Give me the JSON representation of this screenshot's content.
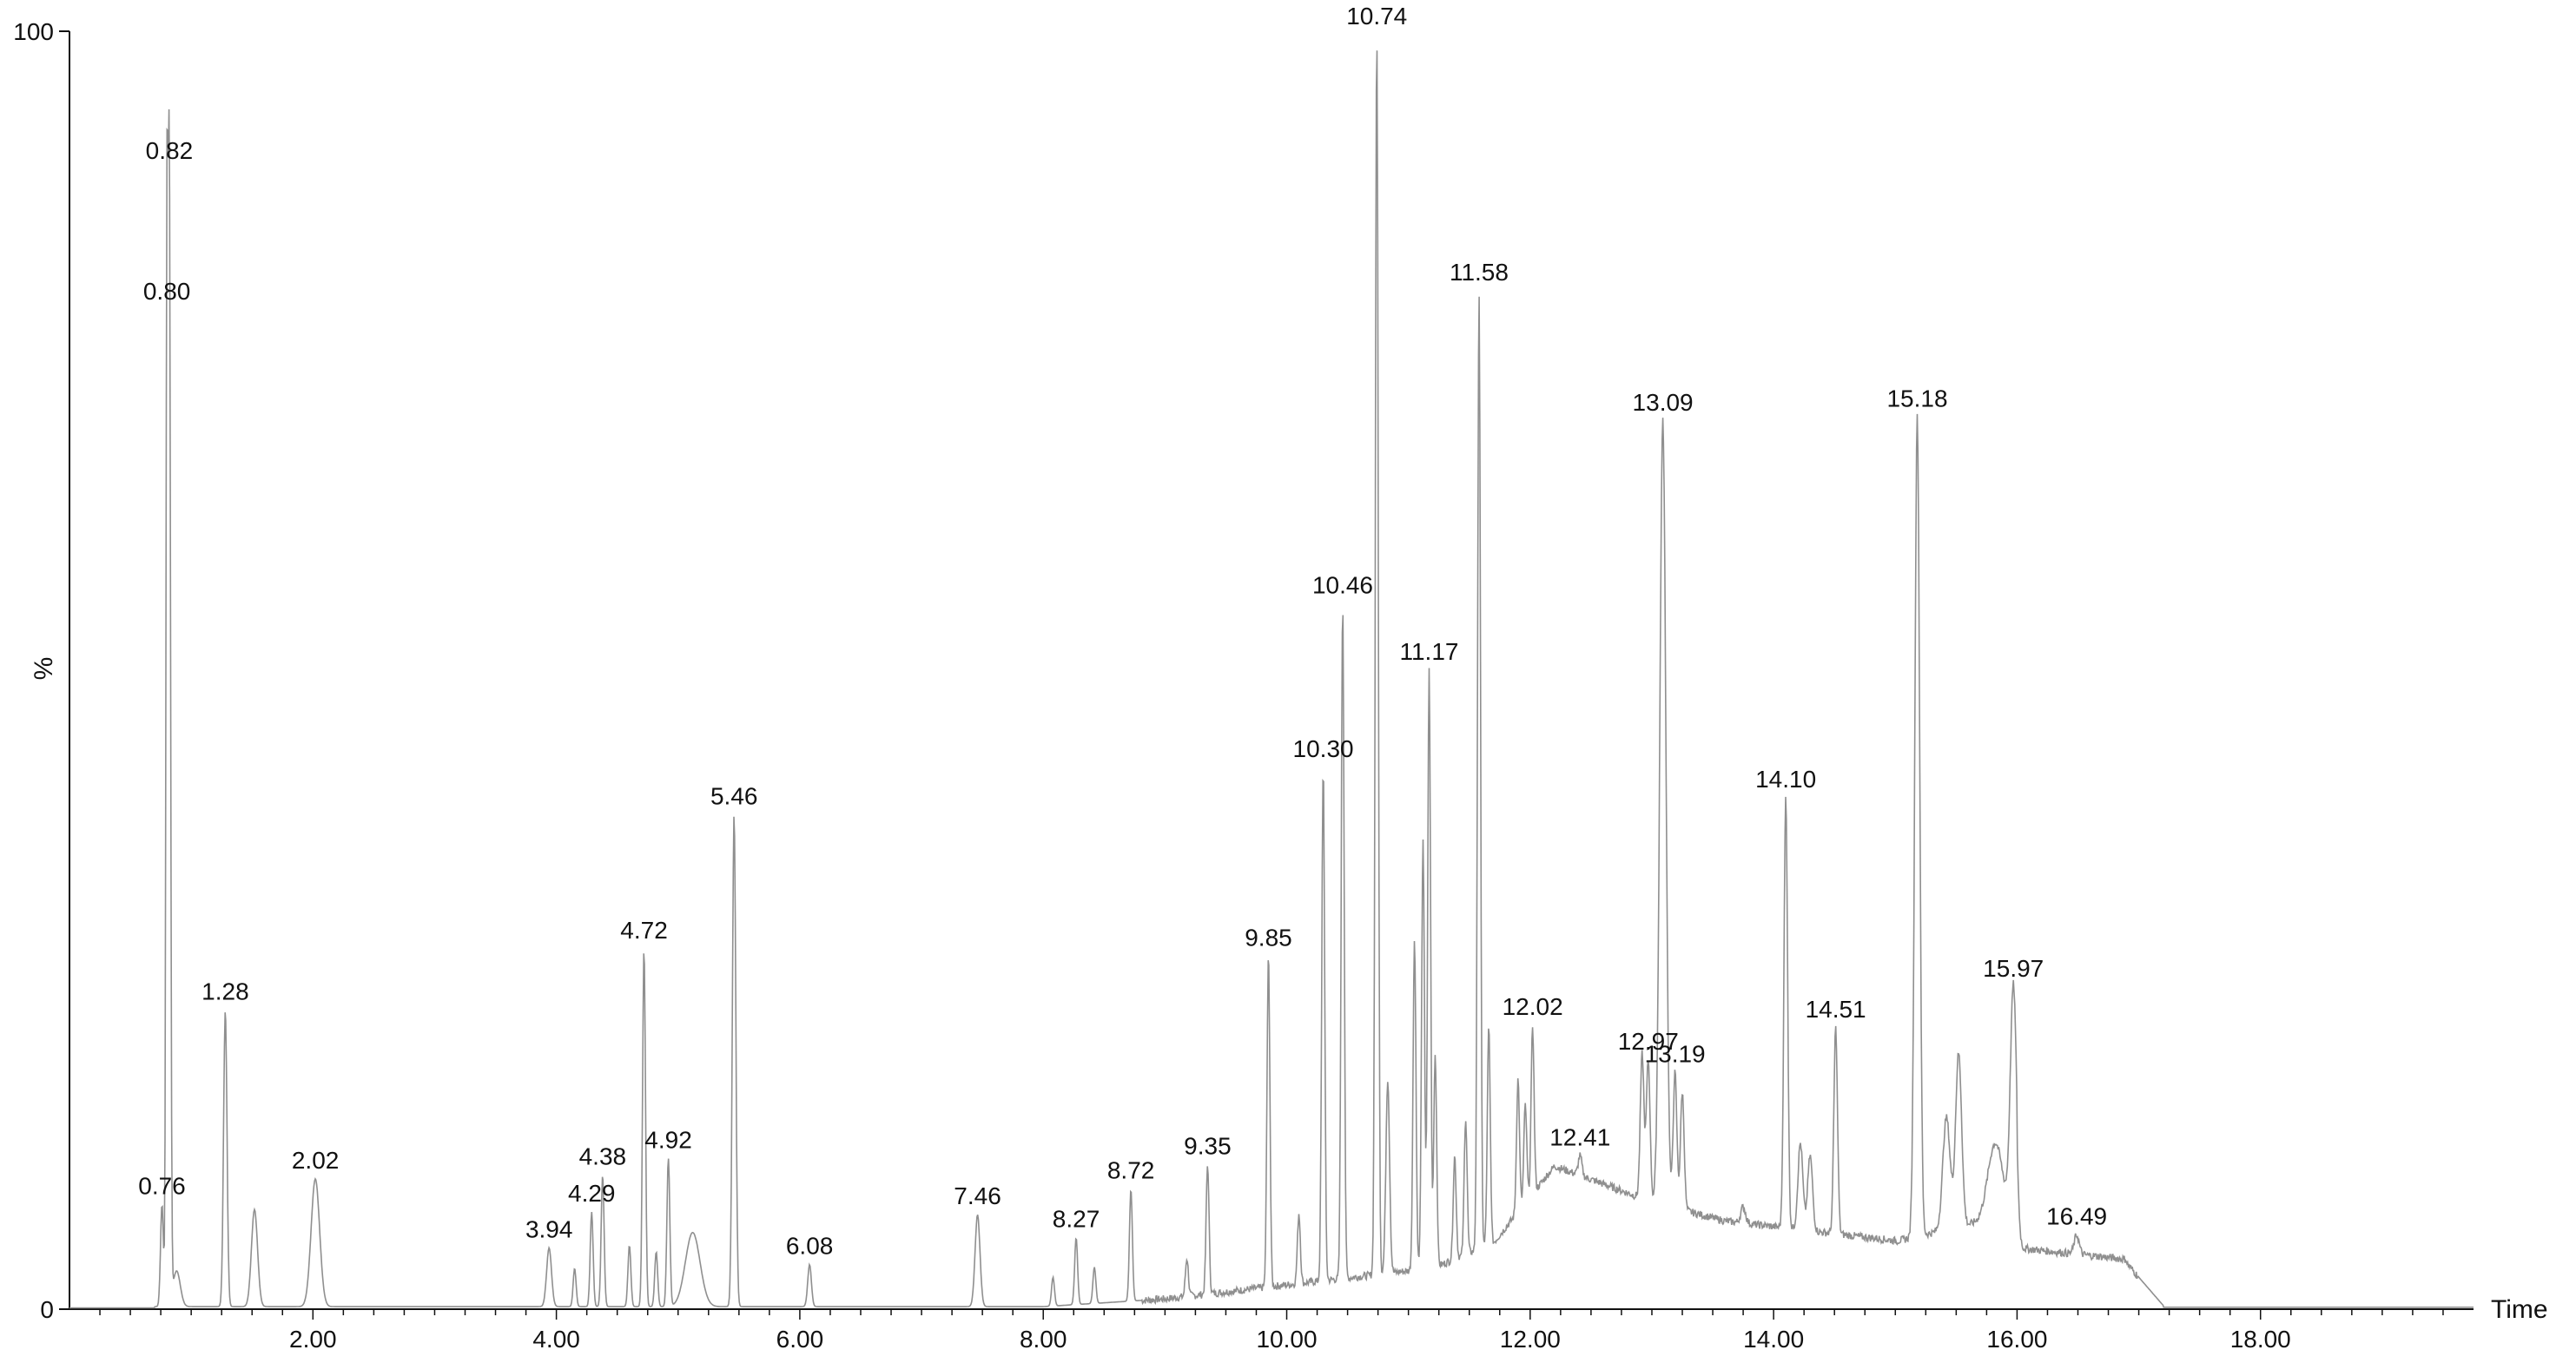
{
  "chart_data": {
    "type": "line",
    "title": "",
    "xlabel": "Time",
    "ylabel": "%",
    "xlim": [
      0.0,
      19.75
    ],
    "ylim": [
      0,
      100
    ],
    "grid": false,
    "x_ticks": [
      "2.00",
      "4.00",
      "6.00",
      "8.00",
      "10.00",
      "12.00",
      "14.00",
      "16.00",
      "18.00"
    ],
    "y_ticks": [
      "0",
      "100"
    ],
    "line_color": "#8f8f8f",
    "peaks": [
      {
        "x": 0.76,
        "y": 8.2,
        "w": 0.012,
        "label": "0.76"
      },
      {
        "x": 0.8,
        "y": 78.2,
        "w": 0.008,
        "label": "0.80"
      },
      {
        "x": 0.82,
        "y": 89.2,
        "w": 0.01,
        "label": "0.82"
      },
      {
        "x": 0.88,
        "y": 3.0,
        "w": 0.03,
        "label": ""
      },
      {
        "x": 1.28,
        "y": 23.4,
        "w": 0.014,
        "label": "1.28"
      },
      {
        "x": 1.52,
        "y": 7.8,
        "w": 0.025,
        "label": ""
      },
      {
        "x": 2.02,
        "y": 10.2,
        "w": 0.035,
        "label": "2.02"
      },
      {
        "x": 3.94,
        "y": 4.8,
        "w": 0.02,
        "label": "3.94"
      },
      {
        "x": 4.15,
        "y": 3.2,
        "w": 0.012,
        "label": ""
      },
      {
        "x": 4.29,
        "y": 7.6,
        "w": 0.012,
        "label": "4.29"
      },
      {
        "x": 4.38,
        "y": 10.5,
        "w": 0.012,
        "label": "4.38"
      },
      {
        "x": 4.6,
        "y": 5.0,
        "w": 0.012,
        "label": ""
      },
      {
        "x": 4.72,
        "y": 28.2,
        "w": 0.012,
        "label": "4.72"
      },
      {
        "x": 4.82,
        "y": 4.5,
        "w": 0.012,
        "label": ""
      },
      {
        "x": 4.92,
        "y": 11.8,
        "w": 0.012,
        "label": "4.92"
      },
      {
        "x": 5.12,
        "y": 6.0,
        "w": 0.06,
        "label": ""
      },
      {
        "x": 5.46,
        "y": 38.7,
        "w": 0.014,
        "label": "5.46"
      },
      {
        "x": 6.08,
        "y": 3.5,
        "w": 0.015,
        "label": "6.08"
      },
      {
        "x": 7.46,
        "y": 7.4,
        "w": 0.02,
        "label": "7.46"
      },
      {
        "x": 8.08,
        "y": 2.5,
        "w": 0.012,
        "label": ""
      },
      {
        "x": 8.27,
        "y": 5.6,
        "w": 0.012,
        "label": "8.27"
      },
      {
        "x": 8.42,
        "y": 3.3,
        "w": 0.012,
        "label": ""
      },
      {
        "x": 8.72,
        "y": 9.4,
        "w": 0.012,
        "label": "8.72"
      },
      {
        "x": 9.18,
        "y": 4.0,
        "w": 0.012,
        "label": ""
      },
      {
        "x": 9.35,
        "y": 11.3,
        "w": 0.012,
        "label": "9.35"
      },
      {
        "x": 9.85,
        "y": 27.6,
        "w": 0.012,
        "label": "9.85"
      },
      {
        "x": 10.1,
        "y": 7.5,
        "w": 0.012,
        "label": ""
      },
      {
        "x": 10.3,
        "y": 42.4,
        "w": 0.012,
        "label": "10.30"
      },
      {
        "x": 10.46,
        "y": 55.2,
        "w": 0.012,
        "label": "10.46"
      },
      {
        "x": 10.74,
        "y": 99.8,
        "w": 0.012,
        "label": "10.74"
      },
      {
        "x": 10.83,
        "y": 18.0,
        "w": 0.015,
        "label": ""
      },
      {
        "x": 11.05,
        "y": 29.0,
        "w": 0.012,
        "label": ""
      },
      {
        "x": 11.12,
        "y": 36.5,
        "w": 0.012,
        "label": ""
      },
      {
        "x": 11.17,
        "y": 50.0,
        "w": 0.012,
        "label": "11.17"
      },
      {
        "x": 11.22,
        "y": 20.0,
        "w": 0.012,
        "label": ""
      },
      {
        "x": 11.38,
        "y": 12.0,
        "w": 0.012,
        "label": ""
      },
      {
        "x": 11.47,
        "y": 15.0,
        "w": 0.012,
        "label": ""
      },
      {
        "x": 11.58,
        "y": 79.7,
        "w": 0.012,
        "label": "11.58"
      },
      {
        "x": 11.66,
        "y": 22.0,
        "w": 0.012,
        "label": ""
      },
      {
        "x": 11.9,
        "y": 18.0,
        "w": 0.012,
        "label": ""
      },
      {
        "x": 11.96,
        "y": 16.0,
        "w": 0.012,
        "label": ""
      },
      {
        "x": 12.02,
        "y": 22.2,
        "w": 0.012,
        "label": "12.02"
      },
      {
        "x": 12.41,
        "y": 12.0,
        "w": 0.015,
        "label": "12.41"
      },
      {
        "x": 12.92,
        "y": 20.0,
        "w": 0.015,
        "label": ""
      },
      {
        "x": 12.97,
        "y": 19.5,
        "w": 0.015,
        "label": "12.97"
      },
      {
        "x": 13.09,
        "y": 69.5,
        "w": 0.025,
        "label": "13.09"
      },
      {
        "x": 13.19,
        "y": 18.5,
        "w": 0.015,
        "label": "13.19"
      },
      {
        "x": 13.25,
        "y": 17.0,
        "w": 0.015,
        "label": ""
      },
      {
        "x": 13.75,
        "y": 8.0,
        "w": 0.02,
        "label": ""
      },
      {
        "x": 14.1,
        "y": 40.0,
        "w": 0.015,
        "label": "14.10"
      },
      {
        "x": 14.22,
        "y": 13.0,
        "w": 0.02,
        "label": ""
      },
      {
        "x": 14.3,
        "y": 12.0,
        "w": 0.02,
        "label": ""
      },
      {
        "x": 14.51,
        "y": 22.0,
        "w": 0.015,
        "label": "14.51"
      },
      {
        "x": 15.18,
        "y": 69.8,
        "w": 0.02,
        "label": "15.18"
      },
      {
        "x": 15.42,
        "y": 15.0,
        "w": 0.03,
        "label": ""
      },
      {
        "x": 15.52,
        "y": 20.0,
        "w": 0.025,
        "label": ""
      },
      {
        "x": 15.82,
        "y": 13.0,
        "w": 0.06,
        "label": ""
      },
      {
        "x": 15.97,
        "y": 25.2,
        "w": 0.025,
        "label": "15.97"
      },
      {
        "x": 16.49,
        "y": 5.8,
        "w": 0.02,
        "label": "16.49"
      }
    ]
  }
}
